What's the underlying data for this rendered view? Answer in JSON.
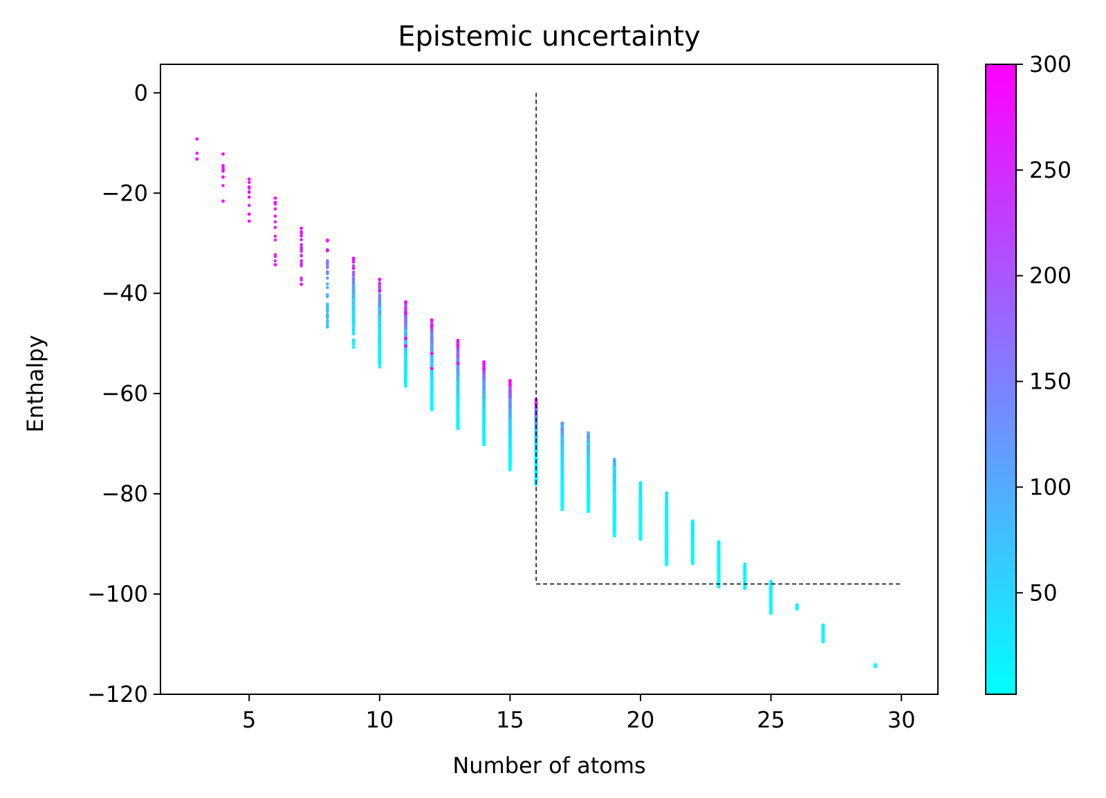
{
  "chart_data": {
    "type": "scatter",
    "title": "Epistemic uncertainty",
    "xlabel": "Number of atoms",
    "ylabel": "Enthalpy",
    "xlim": [
      1.6,
      31.4
    ],
    "ylim": [
      -120,
      5.7
    ],
    "xticks": [
      5,
      10,
      15,
      20,
      25,
      30
    ],
    "yticks": [
      0,
      -20,
      -40,
      -60,
      -80,
      -100,
      -120
    ],
    "grid": false,
    "legend": "none",
    "colormap": {
      "name": "cool",
      "low_color": "#00ffff",
      "high_color": "#ff00ff",
      "range": [
        2,
        300
      ],
      "ticks": [
        50,
        100,
        150,
        200,
        250,
        300
      ]
    },
    "annotations": [
      {
        "type": "vline",
        "x": 16,
        "y_from": -98,
        "y_to": 0,
        "style": "dashed",
        "color": "#000000"
      },
      {
        "type": "hline",
        "y": -98,
        "x_from": 16,
        "x_to": 30,
        "style": "dashed",
        "color": "#000000"
      }
    ],
    "columns": [
      {
        "x": 3,
        "y_min": -13.2,
        "y_max": -9.2,
        "n": 2,
        "u_low": 280,
        "u_high": 300,
        "solid": [],
        "accent_y": [
          -9.2,
          -13.2
        ]
      },
      {
        "x": 4,
        "y_min": -21.6,
        "y_max": -12.2,
        "n": 4,
        "u_low": 270,
        "u_high": 300,
        "solid": [],
        "accent_y": [
          -12.2,
          -15.6,
          -16.8,
          -21.6
        ]
      },
      {
        "x": 5,
        "y_min": -25.6,
        "y_max": -17.2,
        "n": 5,
        "u_low": 265,
        "u_high": 300,
        "solid": [],
        "accent_y": [
          -17.2,
          -19.0,
          -20.8,
          -24.2,
          -25.6
        ]
      },
      {
        "x": 6,
        "y_min": -34.3,
        "y_max": -21.0,
        "n": 12,
        "u_low": 250,
        "u_high": 300,
        "solid": [],
        "accent_y": [
          -21.0,
          -34.3
        ]
      },
      {
        "x": 7,
        "y_min": -38.2,
        "y_max": -27.0,
        "n": 20,
        "u_low": 245,
        "u_high": 300,
        "solid": [],
        "accent_y": [
          -27.0,
          -38.2
        ]
      },
      {
        "x": 8,
        "y_min": -46.8,
        "y_max": -29.4,
        "n": 40,
        "u_low": 70,
        "u_high": 300,
        "solid": [],
        "accent_y": [
          -29.4,
          -31.5
        ]
      },
      {
        "x": 9,
        "y_min": -50.8,
        "y_max": -33.0,
        "n": 60,
        "u_low": 20,
        "u_high": 290,
        "solid": [
          [
            -46.0,
            -38.5
          ]
        ],
        "accent_y": [
          -33.0,
          -35.0
        ]
      },
      {
        "x": 10,
        "y_min": -54.7,
        "y_max": -37.2,
        "n": 80,
        "u_low": 10,
        "u_high": 290,
        "solid": [
          [
            -54.0,
            -41.5
          ]
        ],
        "accent_y": [
          -37.2,
          -39.5
        ]
      },
      {
        "x": 11,
        "y_min": -58.8,
        "y_max": -41.7,
        "n": 110,
        "u_low": 10,
        "u_high": 300,
        "solid": [
          [
            -58.0,
            -43.5
          ]
        ],
        "accent_y": [
          -41.7,
          -44.0,
          -49.0,
          -50.5
        ]
      },
      {
        "x": 12,
        "y_min": -63.3,
        "y_max": -45.3,
        "n": 130,
        "u_low": 5,
        "u_high": 300,
        "solid": [
          [
            -63.0,
            -47.5
          ]
        ],
        "accent_y": [
          -45.3,
          -46.5,
          -52.0,
          -55.0
        ]
      },
      {
        "x": 13,
        "y_min": -67.0,
        "y_max": -49.4,
        "n": 150,
        "u_low": 5,
        "u_high": 300,
        "solid": [
          [
            -66.5,
            -53.0
          ]
        ],
        "accent_y": [
          -49.4,
          -50.5,
          -54.0
        ]
      },
      {
        "x": 14,
        "y_min": -70.3,
        "y_max": -53.7,
        "n": 160,
        "u_low": 5,
        "u_high": 290,
        "solid": [
          [
            -70.0,
            -55.0
          ]
        ],
        "accent_y": [
          -53.7,
          -55.0
        ]
      },
      {
        "x": 15,
        "y_min": -75.2,
        "y_max": -57.4,
        "n": 170,
        "u_low": 3,
        "u_high": 300,
        "solid": [
          [
            -74.5,
            -59.0
          ]
        ],
        "accent_y": [
          -57.4,
          -58.3
        ]
      },
      {
        "x": 16,
        "y_min": -78.3,
        "y_max": -61.2,
        "n": 160,
        "u_low": 3,
        "u_high": 280,
        "solid": [
          [
            -78.0,
            -62.5
          ]
        ],
        "accent_y": [
          -61.2,
          -62.0
        ]
      },
      {
        "x": 17,
        "y_min": -83.2,
        "y_max": -65.8,
        "n": 150,
        "u_low": 3,
        "u_high": 160,
        "solid": [
          [
            -82.5,
            -66.0
          ]
        ],
        "accent_y": []
      },
      {
        "x": 18,
        "y_min": -83.8,
        "y_max": -67.8,
        "n": 140,
        "u_low": 3,
        "u_high": 140,
        "solid": [
          [
            -83.5,
            -69.5
          ]
        ],
        "accent_y": []
      },
      {
        "x": 19,
        "y_min": -88.5,
        "y_max": -73.0,
        "n": 130,
        "u_low": 3,
        "u_high": 110,
        "solid": [
          [
            -87.5,
            -73.5
          ]
        ],
        "accent_y": []
      },
      {
        "x": 20,
        "y_min": -89.2,
        "y_max": -77.6,
        "n": 110,
        "u_low": 3,
        "u_high": 40,
        "solid": [
          [
            -89.0,
            -77.8
          ]
        ],
        "accent_y": []
      },
      {
        "x": 21,
        "y_min": -94.3,
        "y_max": -79.6,
        "n": 90,
        "u_low": 3,
        "u_high": 40,
        "solid": [
          [
            -94.0,
            -82.0
          ]
        ],
        "accent_y": []
      },
      {
        "x": 22,
        "y_min": -94.0,
        "y_max": -85.4,
        "n": 70,
        "u_low": 3,
        "u_high": 30,
        "solid": [
          [
            -93.8,
            -85.6
          ]
        ],
        "accent_y": []
      },
      {
        "x": 23,
        "y_min": -98.6,
        "y_max": -89.4,
        "n": 60,
        "u_low": 3,
        "u_high": 30,
        "solid": [
          [
            -98.4,
            -89.6
          ]
        ],
        "accent_y": []
      },
      {
        "x": 24,
        "y_min": -99.0,
        "y_max": -94.0,
        "n": 30,
        "u_low": 3,
        "u_high": 25,
        "solid": [
          [
            -98.8,
            -94.2
          ]
        ],
        "accent_y": []
      },
      {
        "x": 25,
        "y_min": -104.0,
        "y_max": -97.4,
        "n": 30,
        "u_low": 3,
        "u_high": 25,
        "solid": [
          [
            -103.8,
            -97.6
          ]
        ],
        "accent_y": []
      },
      {
        "x": 26,
        "y_min": -103.2,
        "y_max": -102.0,
        "n": 6,
        "u_low": 3,
        "u_high": 20,
        "solid": [
          [
            -103.0,
            -102.2
          ]
        ],
        "accent_y": []
      },
      {
        "x": 27,
        "y_min": -109.6,
        "y_max": -106.0,
        "n": 15,
        "u_low": 3,
        "u_high": 20,
        "solid": [
          [
            -109.4,
            -106.2
          ]
        ],
        "accent_y": []
      },
      {
        "x": 29,
        "y_min": -114.6,
        "y_max": -114.0,
        "n": 3,
        "u_low": 3,
        "u_high": 15,
        "solid": [
          [
            -114.5,
            -114.1
          ]
        ],
        "accent_y": []
      }
    ]
  }
}
